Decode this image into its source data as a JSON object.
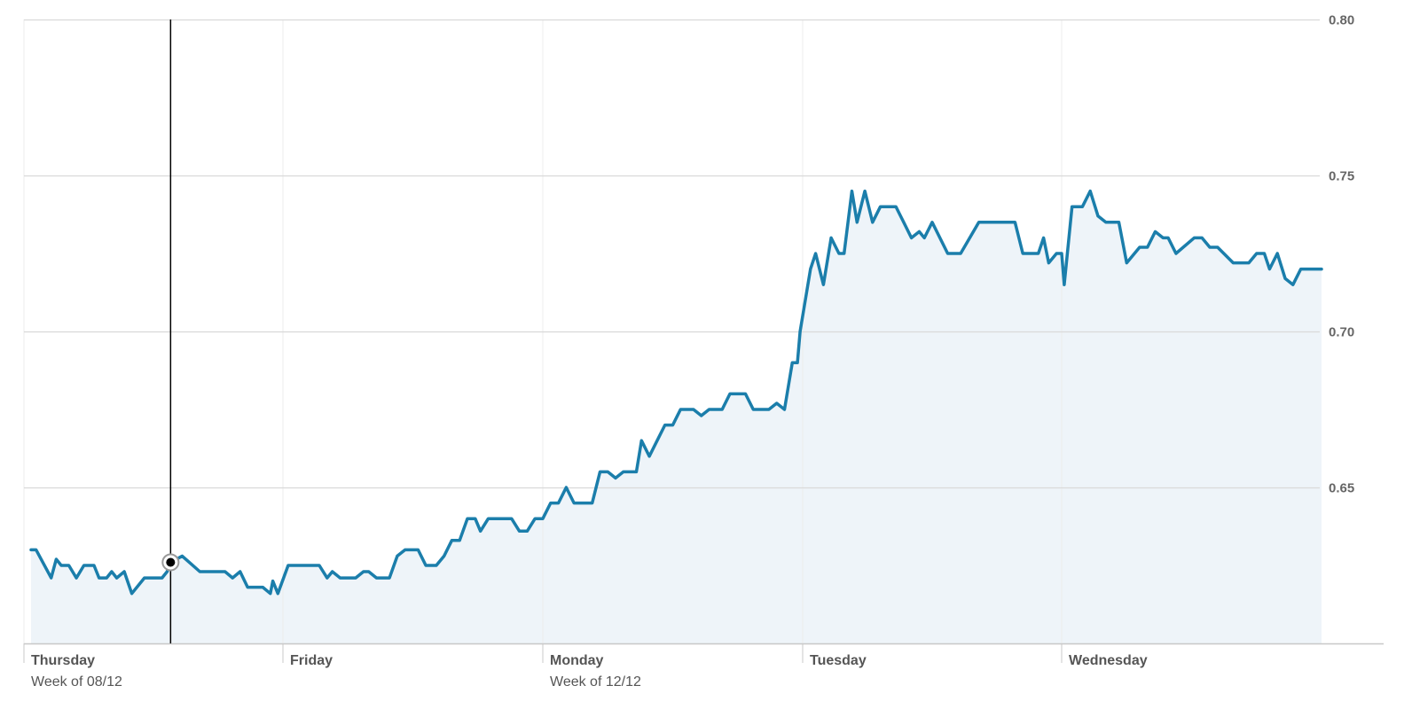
{
  "chart_data": {
    "type": "area",
    "title": "",
    "xlabel": "",
    "ylabel": "",
    "ylim": [
      0.6,
      0.8
    ],
    "y_ticks": [
      {
        "value": 0.65,
        "label": "0.65"
      },
      {
        "value": 0.7,
        "label": "0.70"
      },
      {
        "value": 0.75,
        "label": "0.75"
      },
      {
        "value": 0.8,
        "label": "0.80"
      }
    ],
    "x_range": [
      0,
      5
    ],
    "x_unit": "trading day index (each session = 1.0)",
    "x_ticks": [
      {
        "value": 0,
        "day": "Thursday",
        "week": "Week of 08/12"
      },
      {
        "value": 1,
        "day": "Friday",
        "week": ""
      },
      {
        "value": 2,
        "day": "Monday",
        "week": "Week of 12/12"
      },
      {
        "value": 3,
        "day": "Tuesday",
        "week": ""
      },
      {
        "value": 4,
        "day": "Wednesday",
        "week": ""
      }
    ],
    "grid": true,
    "y_axis_position": "right",
    "colors": {
      "line": "#1b7eab",
      "area": "#eef4f9",
      "grid": "#d9d9d9",
      "vgrid": "#ececec",
      "axis": "#c8c8c8",
      "crosshair": "#000000"
    },
    "crosshair": {
      "x": 0.554,
      "y": 0.626
    },
    "series": [
      {
        "name": "",
        "points": [
          [
            0.0,
            0.63
          ],
          [
            0.02,
            0.63
          ],
          [
            0.08,
            0.621
          ],
          [
            0.1,
            0.627
          ],
          [
            0.12,
            0.625
          ],
          [
            0.15,
            0.625
          ],
          [
            0.18,
            0.621
          ],
          [
            0.21,
            0.625
          ],
          [
            0.25,
            0.625
          ],
          [
            0.27,
            0.621
          ],
          [
            0.3,
            0.621
          ],
          [
            0.32,
            0.623
          ],
          [
            0.34,
            0.621
          ],
          [
            0.37,
            0.623
          ],
          [
            0.4,
            0.616
          ],
          [
            0.45,
            0.621
          ],
          [
            0.52,
            0.621
          ],
          [
            0.54,
            0.623
          ],
          [
            0.554,
            0.626
          ],
          [
            0.6,
            0.628
          ],
          [
            0.67,
            0.623
          ],
          [
            0.77,
            0.623
          ],
          [
            0.8,
            0.621
          ],
          [
            0.83,
            0.623
          ],
          [
            0.86,
            0.618
          ],
          [
            0.92,
            0.618
          ],
          [
            0.95,
            0.616
          ],
          [
            0.96,
            0.62
          ],
          [
            0.98,
            0.616
          ],
          [
            1.02,
            0.625
          ],
          [
            1.1,
            0.625
          ],
          [
            1.14,
            0.625
          ],
          [
            1.17,
            0.621
          ],
          [
            1.19,
            0.623
          ],
          [
            1.22,
            0.621
          ],
          [
            1.28,
            0.621
          ],
          [
            1.31,
            0.623
          ],
          [
            1.33,
            0.623
          ],
          [
            1.36,
            0.621
          ],
          [
            1.39,
            0.621
          ],
          [
            1.41,
            0.621
          ],
          [
            1.44,
            0.628
          ],
          [
            1.47,
            0.63
          ],
          [
            1.52,
            0.63
          ],
          [
            1.55,
            0.625
          ],
          [
            1.59,
            0.625
          ],
          [
            1.62,
            0.628
          ],
          [
            1.65,
            0.633
          ],
          [
            1.68,
            0.633
          ],
          [
            1.71,
            0.64
          ],
          [
            1.74,
            0.64
          ],
          [
            1.76,
            0.636
          ],
          [
            1.79,
            0.64
          ],
          [
            1.88,
            0.64
          ],
          [
            1.91,
            0.636
          ],
          [
            1.94,
            0.636
          ],
          [
            1.97,
            0.64
          ],
          [
            2.0,
            0.64
          ],
          [
            2.03,
            0.645
          ],
          [
            2.06,
            0.645
          ],
          [
            2.09,
            0.65
          ],
          [
            2.12,
            0.645
          ],
          [
            2.19,
            0.645
          ],
          [
            2.22,
            0.655
          ],
          [
            2.25,
            0.655
          ],
          [
            2.28,
            0.653
          ],
          [
            2.31,
            0.655
          ],
          [
            2.36,
            0.655
          ],
          [
            2.38,
            0.665
          ],
          [
            2.41,
            0.66
          ],
          [
            2.44,
            0.665
          ],
          [
            2.47,
            0.67
          ],
          [
            2.5,
            0.67
          ],
          [
            2.53,
            0.675
          ],
          [
            2.58,
            0.675
          ],
          [
            2.61,
            0.673
          ],
          [
            2.64,
            0.675
          ],
          [
            2.69,
            0.675
          ],
          [
            2.72,
            0.68
          ],
          [
            2.78,
            0.68
          ],
          [
            2.81,
            0.675
          ],
          [
            2.87,
            0.675
          ],
          [
            2.9,
            0.677
          ],
          [
            2.93,
            0.675
          ],
          [
            2.96,
            0.69
          ],
          [
            2.98,
            0.69
          ],
          [
            2.99,
            0.7
          ],
          [
            3.03,
            0.72
          ],
          [
            3.05,
            0.725
          ],
          [
            3.08,
            0.715
          ],
          [
            3.11,
            0.73
          ],
          [
            3.14,
            0.725
          ],
          [
            3.16,
            0.725
          ],
          [
            3.19,
            0.745
          ],
          [
            3.21,
            0.735
          ],
          [
            3.24,
            0.745
          ],
          [
            3.27,
            0.735
          ],
          [
            3.3,
            0.74
          ],
          [
            3.36,
            0.74
          ],
          [
            3.39,
            0.735
          ],
          [
            3.42,
            0.73
          ],
          [
            3.45,
            0.732
          ],
          [
            3.47,
            0.73
          ],
          [
            3.5,
            0.735
          ],
          [
            3.56,
            0.725
          ],
          [
            3.61,
            0.725
          ],
          [
            3.68,
            0.735
          ],
          [
            3.82,
            0.735
          ],
          [
            3.85,
            0.725
          ],
          [
            3.91,
            0.725
          ],
          [
            3.93,
            0.73
          ],
          [
            3.95,
            0.722
          ],
          [
            3.98,
            0.725
          ],
          [
            4.0,
            0.725
          ],
          [
            4.01,
            0.715
          ],
          [
            4.04,
            0.74
          ],
          [
            4.08,
            0.74
          ],
          [
            4.11,
            0.745
          ],
          [
            4.14,
            0.737
          ],
          [
            4.17,
            0.735
          ],
          [
            4.22,
            0.735
          ],
          [
            4.25,
            0.722
          ],
          [
            4.3,
            0.727
          ],
          [
            4.33,
            0.727
          ],
          [
            4.36,
            0.732
          ],
          [
            4.39,
            0.73
          ],
          [
            4.41,
            0.73
          ],
          [
            4.44,
            0.725
          ],
          [
            4.51,
            0.73
          ],
          [
            4.54,
            0.73
          ],
          [
            4.57,
            0.727
          ],
          [
            4.6,
            0.727
          ],
          [
            4.66,
            0.722
          ],
          [
            4.72,
            0.722
          ],
          [
            4.75,
            0.725
          ],
          [
            4.78,
            0.725
          ],
          [
            4.8,
            0.72
          ],
          [
            4.83,
            0.725
          ],
          [
            4.86,
            0.717
          ],
          [
            4.89,
            0.715
          ],
          [
            4.92,
            0.72
          ],
          [
            5.0,
            0.72
          ]
        ]
      }
    ]
  }
}
